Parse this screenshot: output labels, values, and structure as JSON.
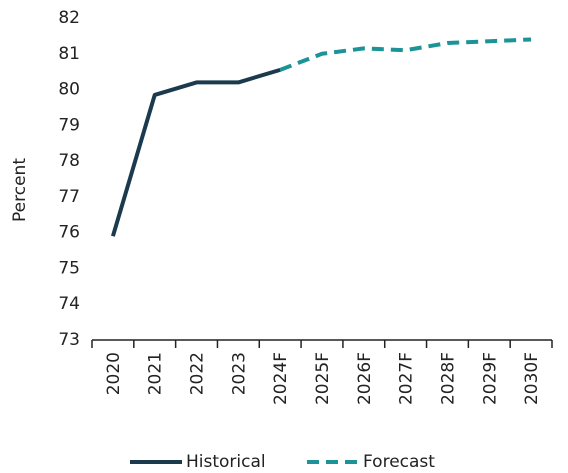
{
  "chart_data": {
    "type": "line",
    "y_label": "Percent",
    "categories": [
      "2020",
      "2021",
      "2022",
      "2023",
      "2024F",
      "2025F",
      "2026F",
      "2027F",
      "2028F",
      "2029F",
      "2030F"
    ],
    "series": [
      {
        "name": "Historical",
        "color": "#1b3a4e",
        "dashed": false,
        "values": [
          75.9,
          79.85,
          80.2,
          80.2,
          80.55,
          null,
          null,
          null,
          null,
          null,
          null
        ]
      },
      {
        "name": "Forecast",
        "color": "#1c9396",
        "dashed": true,
        "values": [
          null,
          null,
          null,
          null,
          80.55,
          81.0,
          81.15,
          81.1,
          81.3,
          81.35,
          81.4
        ]
      }
    ],
    "ylim": [
      73,
      82
    ],
    "yticks": [
      73,
      74,
      75,
      76,
      77,
      78,
      79,
      80,
      81,
      82
    ],
    "grid": false,
    "legend": "bottom"
  }
}
